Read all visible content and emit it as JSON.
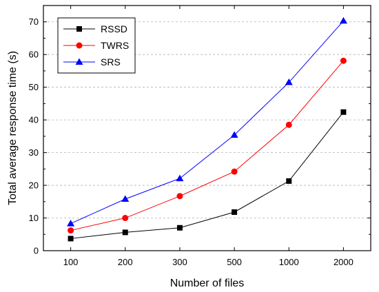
{
  "chart_data": {
    "type": "line",
    "title": "",
    "xlabel": "Number of files",
    "ylabel": "Total average response time (s)",
    "categories": [
      "100",
      "200",
      "300",
      "500",
      "1000",
      "2000"
    ],
    "ylim": [
      0,
      75
    ],
    "yticks": [
      0,
      10,
      20,
      30,
      40,
      50,
      60,
      70
    ],
    "grid": "horizontal-dashed",
    "legend_position": "top-left",
    "series": [
      {
        "name": "RSSD",
        "color": "#000000",
        "marker": "square",
        "values": [
          3.7,
          5.6,
          7.0,
          11.8,
          21.3,
          42.4
        ]
      },
      {
        "name": "TWRS",
        "color": "#ff0000",
        "marker": "circle",
        "values": [
          6.2,
          10.0,
          16.7,
          24.2,
          38.5,
          58.1
        ]
      },
      {
        "name": "SRS",
        "color": "#0000ff",
        "marker": "triangle",
        "values": [
          8.3,
          15.8,
          22.1,
          35.4,
          51.5,
          70.3
        ]
      }
    ]
  }
}
